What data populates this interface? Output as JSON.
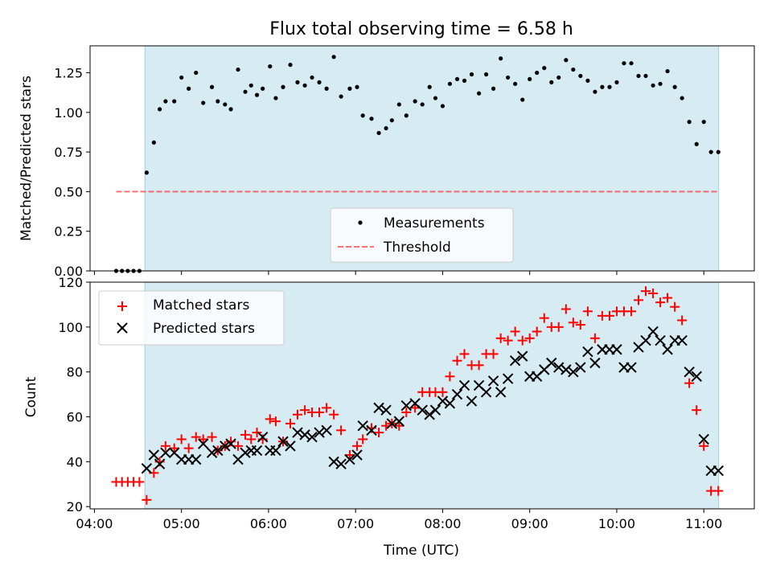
{
  "figure": {
    "title": "Flux total observing time = 6.58 h",
    "xlabel": "Time (UTC)",
    "x_tick_labels": [
      "04:00",
      "05:00",
      "06:00",
      "07:00",
      "08:00",
      "09:00",
      "10:00",
      "11:00"
    ]
  },
  "colors": {
    "shade": "#add8e6",
    "threshold": "#ff0000",
    "matched": "#ff0000",
    "predicted": "#000000",
    "measurement": "#000000"
  },
  "chart_data": [
    {
      "type": "scatter",
      "ylabel": "Matched/Predicted stars",
      "x_units": "hours UTC",
      "xlim": [
        3.95,
        11.58
      ],
      "ylim": [
        0,
        1.42
      ],
      "y_tick_labels": [
        "0.00",
        "0.25",
        "0.50",
        "0.75",
        "1.00",
        "1.25"
      ],
      "y_ticks": [
        0,
        0.25,
        0.5,
        0.75,
        1.0,
        1.25
      ],
      "shaded_span": [
        4.58,
        11.17
      ],
      "legend": {
        "position": "lower center",
        "entries": [
          "Measurements",
          "Threshold"
        ]
      },
      "threshold": {
        "name": "Threshold",
        "x": [
          4.25,
          11.17
        ],
        "y": 0.5
      },
      "series": [
        {
          "name": "Measurements",
          "marker": "dot",
          "x": [
            4.25,
            4.317,
            4.383,
            4.45,
            4.517,
            4.6,
            4.683,
            4.75,
            4.817,
            4.917,
            5.0,
            5.083,
            5.167,
            5.25,
            5.35,
            5.417,
            5.5,
            5.567,
            5.65,
            5.733,
            5.8,
            5.867,
            5.933,
            6.017,
            6.083,
            6.167,
            6.25,
            6.333,
            6.417,
            6.5,
            6.583,
            6.667,
            6.75,
            6.833,
            6.933,
            7.017,
            7.083,
            7.183,
            7.267,
            7.35,
            7.417,
            7.5,
            7.583,
            7.683,
            7.767,
            7.85,
            7.917,
            8.0,
            8.083,
            8.167,
            8.25,
            8.333,
            8.417,
            8.5,
            8.583,
            8.667,
            8.75,
            8.833,
            8.917,
            9.0,
            9.083,
            9.167,
            9.25,
            9.333,
            9.417,
            9.5,
            9.583,
            9.667,
            9.75,
            9.833,
            9.917,
            10.0,
            10.083,
            10.167,
            10.25,
            10.333,
            10.417,
            10.5,
            10.583,
            10.667,
            10.75,
            10.833,
            10.917,
            11.0,
            11.083,
            11.167
          ],
          "y": [
            0.0,
            0.0,
            0.0,
            0.0,
            0.0,
            0.62,
            0.81,
            1.02,
            1.07,
            1.07,
            1.22,
            1.15,
            1.25,
            1.06,
            1.16,
            1.07,
            1.05,
            1.02,
            1.27,
            1.13,
            1.17,
            1.11,
            1.15,
            1.29,
            1.09,
            1.16,
            1.3,
            1.19,
            1.17,
            1.22,
            1.19,
            1.15,
            1.35,
            1.1,
            1.15,
            1.16,
            0.98,
            0.96,
            0.87,
            0.9,
            0.95,
            1.05,
            0.98,
            1.07,
            1.05,
            1.16,
            1.09,
            1.04,
            1.18,
            1.21,
            1.2,
            1.24,
            1.12,
            1.24,
            1.15,
            1.34,
            1.22,
            1.18,
            1.08,
            1.21,
            1.25,
            1.28,
            1.19,
            1.22,
            1.33,
            1.27,
            1.23,
            1.2,
            1.13,
            1.16,
            1.16,
            1.19,
            1.31,
            1.31,
            1.23,
            1.23,
            1.17,
            1.18,
            1.26,
            1.16,
            1.09,
            0.94,
            0.8,
            0.94,
            0.75,
            0.75
          ]
        }
      ]
    },
    {
      "type": "scatter",
      "ylabel": "Count",
      "x_units": "hours UTC",
      "xlim": [
        3.95,
        11.58
      ],
      "ylim": [
        19,
        120
      ],
      "y_tick_labels": [
        "20",
        "40",
        "60",
        "80",
        "100",
        "120"
      ],
      "y_ticks": [
        20,
        40,
        60,
        80,
        100,
        120
      ],
      "shaded_span": [
        4.58,
        11.17
      ],
      "legend": {
        "position": "upper left",
        "entries": [
          "Matched stars",
          "Predicted stars"
        ]
      },
      "series": [
        {
          "name": "Matched stars",
          "marker": "plus",
          "x": [
            4.25,
            4.317,
            4.383,
            4.45,
            4.517,
            4.6,
            4.683,
            4.75,
            4.817,
            4.917,
            5.0,
            5.083,
            5.167,
            5.25,
            5.35,
            5.417,
            5.5,
            5.567,
            5.65,
            5.733,
            5.8,
            5.867,
            5.933,
            6.017,
            6.083,
            6.167,
            6.25,
            6.333,
            6.417,
            6.5,
            6.583,
            6.667,
            6.75,
            6.833,
            6.933,
            7.017,
            7.083,
            7.183,
            7.267,
            7.35,
            7.417,
            7.5,
            7.583,
            7.683,
            7.767,
            7.85,
            7.917,
            8.0,
            8.083,
            8.167,
            8.25,
            8.333,
            8.417,
            8.5,
            8.583,
            8.667,
            8.75,
            8.833,
            8.917,
            9.0,
            9.083,
            9.167,
            9.25,
            9.333,
            9.417,
            9.5,
            9.583,
            9.667,
            9.75,
            9.833,
            9.917,
            10.0,
            10.083,
            10.167,
            10.25,
            10.333,
            10.417,
            10.5,
            10.583,
            10.667,
            10.75,
            10.833,
            10.917,
            11.0,
            11.083,
            11.167
          ],
          "y": [
            31,
            31,
            31,
            31,
            31,
            23,
            35,
            40,
            47,
            46,
            50,
            46,
            51,
            50,
            51,
            45,
            47,
            49,
            47,
            52,
            50,
            53,
            50,
            59,
            58,
            49,
            57,
            61,
            63,
            62,
            62,
            64,
            61,
            54,
            43,
            47,
            50,
            55,
            53,
            56,
            57,
            56,
            62,
            64,
            71,
            71,
            71,
            71,
            78,
            85,
            88,
            83,
            83,
            88,
            88,
            95,
            94,
            98,
            94,
            95,
            98,
            104,
            100,
            100,
            108,
            102,
            101,
            107,
            95,
            105,
            105,
            107,
            107,
            107,
            112,
            116,
            115,
            111,
            113,
            109,
            103,
            75,
            63,
            47,
            27,
            27
          ]
        },
        {
          "name": "Predicted stars",
          "marker": "x",
          "x": [
            4.6,
            4.683,
            4.75,
            4.817,
            4.917,
            5.0,
            5.083,
            5.167,
            5.25,
            5.35,
            5.417,
            5.5,
            5.567,
            5.65,
            5.733,
            5.8,
            5.867,
            5.933,
            6.017,
            6.083,
            6.167,
            6.25,
            6.333,
            6.417,
            6.5,
            6.583,
            6.667,
            6.75,
            6.833,
            6.933,
            7.017,
            7.083,
            7.183,
            7.267,
            7.35,
            7.417,
            7.5,
            7.583,
            7.683,
            7.767,
            7.85,
            7.917,
            8.0,
            8.083,
            8.167,
            8.25,
            8.333,
            8.417,
            8.5,
            8.583,
            8.667,
            8.75,
            8.833,
            8.917,
            9.0,
            9.083,
            9.167,
            9.25,
            9.333,
            9.417,
            9.5,
            9.583,
            9.667,
            9.75,
            9.833,
            9.917,
            10.0,
            10.083,
            10.167,
            10.25,
            10.333,
            10.417,
            10.5,
            10.583,
            10.667,
            10.75,
            10.833,
            10.917,
            11.0,
            11.083,
            11.167
          ],
          "y": [
            37,
            43,
            39,
            44,
            44,
            41,
            41,
            41,
            48,
            44,
            45,
            47,
            48,
            41,
            44,
            45,
            45,
            51,
            45,
            45,
            49,
            47,
            53,
            52,
            51,
            53,
            54,
            40,
            39,
            41,
            43,
            56,
            54,
            64,
            63,
            57,
            58,
            65,
            66,
            63,
            61,
            63,
            67,
            66,
            70,
            74,
            67,
            74,
            71,
            76,
            71,
            77,
            85,
            87,
            78,
            78,
            81,
            84,
            82,
            81,
            80,
            82,
            89,
            84,
            90,
            90,
            90,
            82,
            82,
            91,
            94,
            98,
            94,
            90,
            94,
            94,
            80,
            78,
            50,
            36,
            36
          ]
        }
      ]
    }
  ]
}
